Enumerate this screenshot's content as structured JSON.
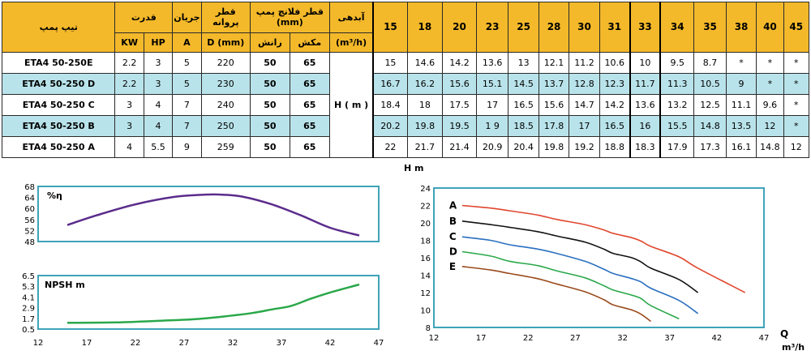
{
  "table": {
    "headers": {
      "pump_type": "تیپ پمپ",
      "power": "قدرت",
      "current": "جریان",
      "impeller_diameter": "قطر پروانه",
      "flange": "قطر فلانچ پمپ (mm)",
      "flow": "آبدهی",
      "kw": "KW",
      "hp": "HP",
      "a": "A",
      "d_mm": "D (mm)",
      "discharge": "رانش",
      "suction": "مکش",
      "flow_unit": "(m³/h)",
      "head_label": "H ( m )"
    },
    "flows": [
      "15",
      "18",
      "20",
      "23",
      "25",
      "28",
      "30",
      "31",
      "33",
      "34",
      "35",
      "38",
      "40",
      "45"
    ],
    "rows": [
      {
        "model": "ETA4 50-250E",
        "kw": "2.2",
        "hp": "3",
        "a": "5",
        "d": "220",
        "discharge": "50",
        "suction": "65",
        "h": [
          "15",
          "14.6",
          "14.2",
          "13.6",
          "13",
          "12.1",
          "11.2",
          "10.6",
          "10",
          "9.5",
          "8.7",
          "*",
          "*",
          "*"
        ]
      },
      {
        "model": "ETA4 50-250 D",
        "kw": "2.2",
        "hp": "3",
        "a": "5",
        "d": "230",
        "discharge": "50",
        "suction": "65",
        "h": [
          "16.7",
          "16.2",
          "15.6",
          "15.1",
          "14.5",
          "13.7",
          "12.8",
          "12.3",
          "11.7",
          "11.3",
          "10.5",
          "9",
          "*",
          "*"
        ]
      },
      {
        "model": "ETA4 50-250 C",
        "kw": "3",
        "hp": "4",
        "a": "7",
        "d": "240",
        "discharge": "50",
        "suction": "65",
        "h": [
          "18.4",
          "18",
          "17.5",
          "17",
          "16.5",
          "15.6",
          "14.7",
          "14.2",
          "13.6",
          "13.2",
          "12.5",
          "11.1",
          "9.6",
          "*"
        ]
      },
      {
        "model": "ETA4 50-250 B",
        "kw": "3",
        "hp": "4",
        "a": "7",
        "d": "250",
        "discharge": "50",
        "suction": "65",
        "h": [
          "20.2",
          "19.8",
          "19.5",
          "1 9",
          "18.5",
          "17.8",
          "17",
          "16.5",
          "16",
          "15.5",
          "14.8",
          "13.5",
          "12",
          "*"
        ]
      },
      {
        "model": "ETA4 50-250 A",
        "kw": "4",
        "hp": "5.5",
        "a": "9",
        "d": "259",
        "discharge": "50",
        "suction": "65",
        "h": [
          "22",
          "21.7",
          "21.4",
          "20.9",
          "20.4",
          "19.8",
          "19.2",
          "18.8",
          "18.3",
          "17.9",
          "17.3",
          "16.1",
          "14.8",
          "12"
        ]
      }
    ]
  },
  "chart_data": [
    {
      "type": "line",
      "label": "%η",
      "xlim": [
        12,
        47
      ],
      "xticks": [
        "12",
        "17",
        "22",
        "27",
        "32",
        "37",
        "42",
        "47"
      ],
      "ylim": [
        48,
        68
      ],
      "yticks": [
        "48",
        "52",
        "56",
        "60",
        "64",
        "68"
      ],
      "grid": false,
      "color": "#5b2c8c",
      "series": [
        {
          "x": [
            15,
            18,
            22,
            26,
            29,
            31,
            33,
            36,
            39,
            42,
            45
          ],
          "y": [
            54,
            57.5,
            61.5,
            64.2,
            65,
            65,
            64.3,
            61.5,
            57.5,
            53,
            50.2
          ]
        }
      ]
    },
    {
      "type": "line",
      "label": "NPSH m",
      "xlim": [
        12,
        47
      ],
      "xticks": [
        "12",
        "17",
        "22",
        "27",
        "32",
        "37",
        "42",
        "47"
      ],
      "ylim": [
        0.5,
        6.5
      ],
      "yticks": [
        "0.5",
        "1.7",
        "2.9",
        "4.1",
        "5.3",
        "6.5"
      ],
      "grid": false,
      "color": "#2aa84a",
      "series": [
        {
          "x": [
            15,
            20,
            25,
            28,
            31,
            34,
            36,
            38,
            40,
            42,
            45
          ],
          "y": [
            1.2,
            1.25,
            1.45,
            1.6,
            1.9,
            2.3,
            2.7,
            3.1,
            3.9,
            4.6,
            5.5
          ]
        }
      ]
    },
    {
      "type": "line",
      "ylabel": "H m",
      "xlabel": "Q",
      "xunit": "m³/h",
      "xlim": [
        12,
        47
      ],
      "xticks": [
        "12",
        "17",
        "22",
        "27",
        "32",
        "37",
        "42",
        "47"
      ],
      "ylim": [
        8,
        24
      ],
      "yticks": [
        "8",
        "10",
        "12",
        "14",
        "16",
        "18",
        "20",
        "22",
        "24"
      ],
      "grid": false,
      "legend": "inline-left",
      "series": [
        {
          "name": "A",
          "color": "#e0462e",
          "x": [
            15,
            18,
            20,
            23,
            25,
            28,
            30,
            31,
            33,
            34,
            35,
            38,
            40,
            45
          ],
          "y": [
            22,
            21.7,
            21.4,
            20.9,
            20.4,
            19.8,
            19.2,
            18.8,
            18.3,
            17.9,
            17.3,
            16.1,
            14.8,
            12
          ]
        },
        {
          "name": "B",
          "color": "#111111",
          "x": [
            15,
            18,
            20,
            23,
            25,
            28,
            30,
            31,
            33,
            34,
            35,
            38,
            40
          ],
          "y": [
            20.2,
            19.8,
            19.5,
            19,
            18.5,
            17.8,
            17,
            16.5,
            16,
            15.5,
            14.8,
            13.5,
            12
          ]
        },
        {
          "name": "C",
          "color": "#2a6fc0",
          "x": [
            15,
            18,
            20,
            23,
            25,
            28,
            30,
            31,
            33,
            34,
            35,
            38,
            40
          ],
          "y": [
            18.4,
            18,
            17.5,
            17,
            16.5,
            15.6,
            14.7,
            14.2,
            13.6,
            13.2,
            12.5,
            11.1,
            9.6
          ]
        },
        {
          "name": "D",
          "color": "#2aa84a",
          "x": [
            15,
            18,
            20,
            23,
            25,
            28,
            30,
            31,
            33,
            34,
            35,
            38
          ],
          "y": [
            16.7,
            16.2,
            15.6,
            15.1,
            14.5,
            13.7,
            12.8,
            12.3,
            11.7,
            11.3,
            10.5,
            9
          ]
        },
        {
          "name": "E",
          "color": "#9a4a1c",
          "x": [
            15,
            18,
            20,
            23,
            25,
            28,
            30,
            31,
            33,
            34,
            35
          ],
          "y": [
            15,
            14.6,
            14.2,
            13.6,
            13,
            12.1,
            11.2,
            10.6,
            10,
            9.5,
            8.7
          ]
        }
      ]
    }
  ]
}
